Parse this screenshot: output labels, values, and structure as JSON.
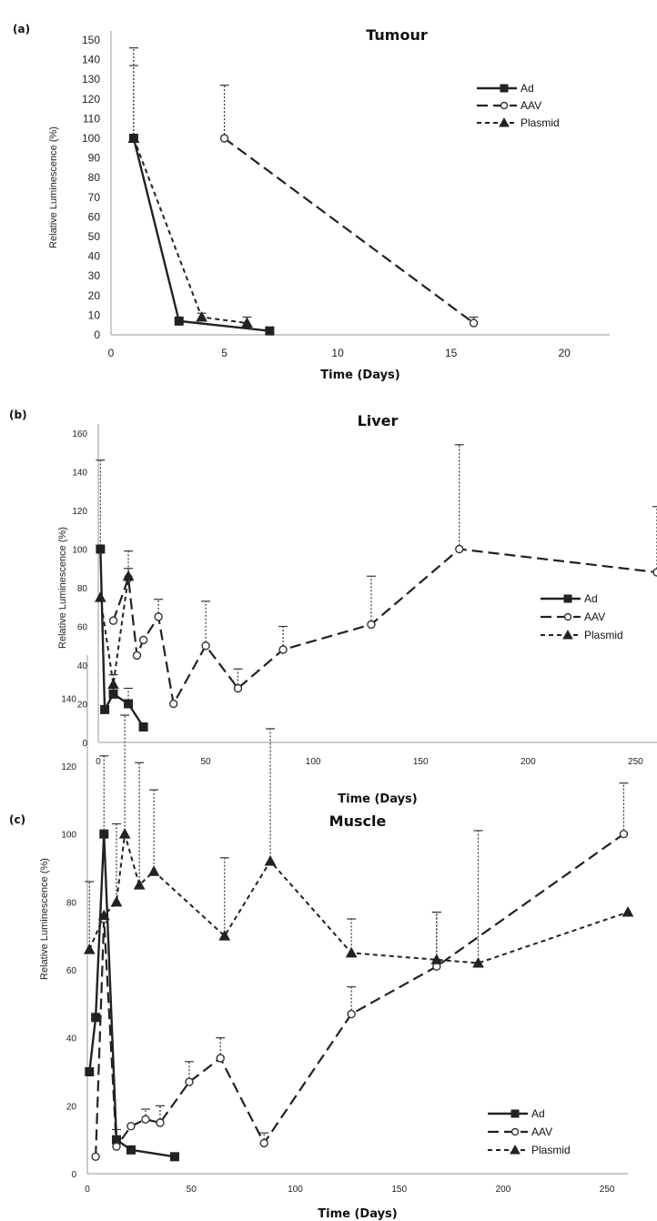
{
  "chart_data": [
    {
      "type": "line",
      "panel_label": "(a)",
      "title": "Tumour",
      "xlabel": "Time (Days)",
      "ylabel": "Relative Luminescence (%)",
      "xlim": [
        0,
        22
      ],
      "ylim": [
        0,
        150
      ],
      "xticks": [
        0,
        5,
        10,
        15,
        20
      ],
      "yticks": [
        0,
        10,
        20,
        30,
        40,
        50,
        60,
        70,
        80,
        90,
        100,
        110,
        120,
        130,
        140,
        150
      ],
      "grid": false,
      "legend_position": "top-right",
      "series": [
        {
          "name": "Ad",
          "x": [
            1,
            3,
            7
          ],
          "y": [
            100,
            7,
            2
          ],
          "err": [
            37,
            0,
            0
          ]
        },
        {
          "name": "AAV",
          "x": [
            5,
            16
          ],
          "y": [
            100,
            6
          ],
          "err": [
            27,
            3
          ]
        },
        {
          "name": "Plasmid",
          "x": [
            1,
            4,
            6
          ],
          "y": [
            100,
            9,
            6
          ],
          "err": [
            46,
            2,
            3
          ]
        }
      ]
    },
    {
      "type": "line",
      "panel_label": "(b)",
      "title": "Liver",
      "xlabel": "Time (Days)",
      "ylabel": "Relative Luminescence (%)",
      "xlim": [
        0,
        260
      ],
      "ylim": [
        0,
        160
      ],
      "xticks": [
        0,
        50,
        100,
        150,
        200,
        250
      ],
      "yticks": [
        0,
        20,
        40,
        60,
        80,
        100,
        120,
        140,
        160
      ],
      "grid": false,
      "legend_position": "right",
      "series": [
        {
          "name": "Ad",
          "x": [
            1,
            3,
            7,
            14,
            21
          ],
          "y": [
            100,
            17,
            25,
            20,
            8
          ],
          "err": [
            46,
            0,
            10,
            8,
            0
          ]
        },
        {
          "name": "AAV",
          "x": [
            7,
            14,
            18,
            21,
            28,
            35,
            50,
            65,
            86,
            127,
            168,
            260
          ],
          "y": [
            63,
            85,
            45,
            53,
            65,
            20,
            50,
            28,
            48,
            61,
            100,
            88
          ],
          "err": [
            0,
            14,
            0,
            0,
            9,
            0,
            23,
            10,
            12,
            25,
            54,
            34
          ]
        },
        {
          "name": "Plasmid",
          "x": [
            1,
            7,
            14
          ],
          "y": [
            75,
            30,
            86
          ],
          "err": [
            0,
            0,
            4
          ]
        }
      ]
    },
    {
      "type": "line",
      "panel_label": "(c)",
      "title": "Muscle",
      "xlabel": "Time (Days)",
      "ylabel": "Relative Luminescence (%)",
      "xlim": [
        0,
        260
      ],
      "ylim": [
        0,
        150
      ],
      "xticks": [
        0,
        50,
        100,
        150,
        200,
        250
      ],
      "yticks": [
        0,
        20,
        40,
        60,
        80,
        100,
        120,
        140
      ],
      "grid": false,
      "legend_position": "bottom-right",
      "series": [
        {
          "name": "Ad",
          "x": [
            1,
            4,
            8,
            14,
            21,
            42
          ],
          "y": [
            30,
            46,
            100,
            10,
            7,
            5
          ],
          "err": [
            0,
            0,
            23,
            0,
            0,
            0
          ]
        },
        {
          "name": "AAV",
          "x": [
            4,
            8,
            14,
            21,
            28,
            35,
            49,
            64,
            85,
            127,
            168,
            258
          ],
          "y": [
            5,
            75,
            8,
            14,
            16,
            15,
            27,
            34,
            9,
            47,
            61,
            100
          ],
          "err": [
            0,
            0,
            5,
            0,
            3,
            5,
            6,
            6,
            3,
            8,
            16,
            15
          ]
        },
        {
          "name": "Plasmid",
          "x": [
            1,
            8,
            14,
            18,
            25,
            32,
            66,
            88,
            127,
            168,
            188,
            260
          ],
          "y": [
            66,
            76,
            80,
            100,
            85,
            89,
            70,
            92,
            65,
            63,
            62,
            77
          ],
          "err": [
            20,
            0,
            23,
            35,
            36,
            24,
            23,
            39,
            10,
            14,
            39,
            0
          ]
        }
      ]
    }
  ]
}
